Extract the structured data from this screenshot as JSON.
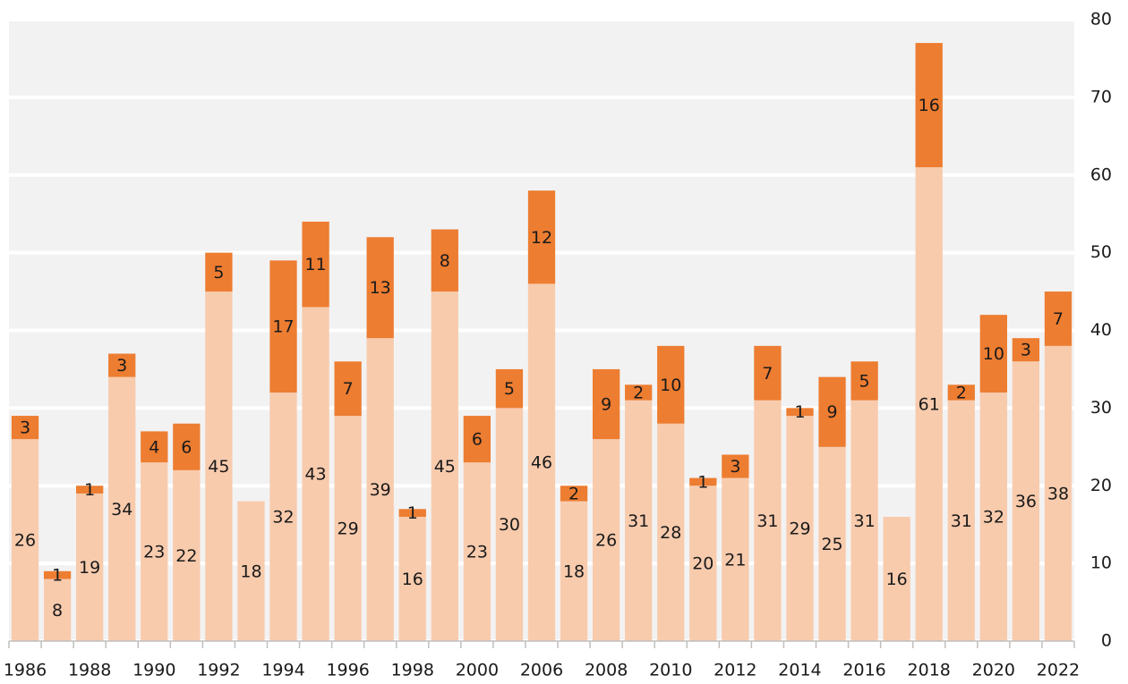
{
  "chart_data": {
    "type": "stacked_bar",
    "categories": [
      "1986",
      null,
      "1988",
      null,
      "1990",
      null,
      "1992",
      null,
      "1994",
      null,
      "1996",
      null,
      "1998",
      null,
      "2000",
      null,
      "2006",
      null,
      "2008",
      null,
      "2010",
      null,
      "2012",
      null,
      "2014",
      null,
      "2016",
      null,
      "2018",
      null,
      "2020",
      null,
      "2022"
    ],
    "series": [
      {
        "color": "#f8cbad",
        "values": [
          26,
          8,
          19,
          34,
          23,
          22,
          45,
          18,
          32,
          43,
          29,
          39,
          16,
          45,
          23,
          30,
          46,
          18,
          26,
          31,
          28,
          20,
          21,
          31,
          29,
          25,
          31,
          16,
          61,
          31,
          32,
          36,
          38
        ]
      },
      {
        "color": "#ed7d31",
        "values": [
          3,
          1,
          1,
          3,
          4,
          6,
          5,
          null,
          17,
          11,
          7,
          13,
          1,
          8,
          6,
          5,
          12,
          2,
          9,
          2,
          10,
          1,
          3,
          7,
          1,
          9,
          5,
          null,
          16,
          2,
          10,
          3,
          7
        ]
      }
    ],
    "ylim": [
      0,
      80
    ],
    "yticks": [
      0,
      10,
      20,
      30,
      40,
      50,
      60,
      70,
      80
    ],
    "grid": true,
    "y_axis_side": "right"
  }
}
